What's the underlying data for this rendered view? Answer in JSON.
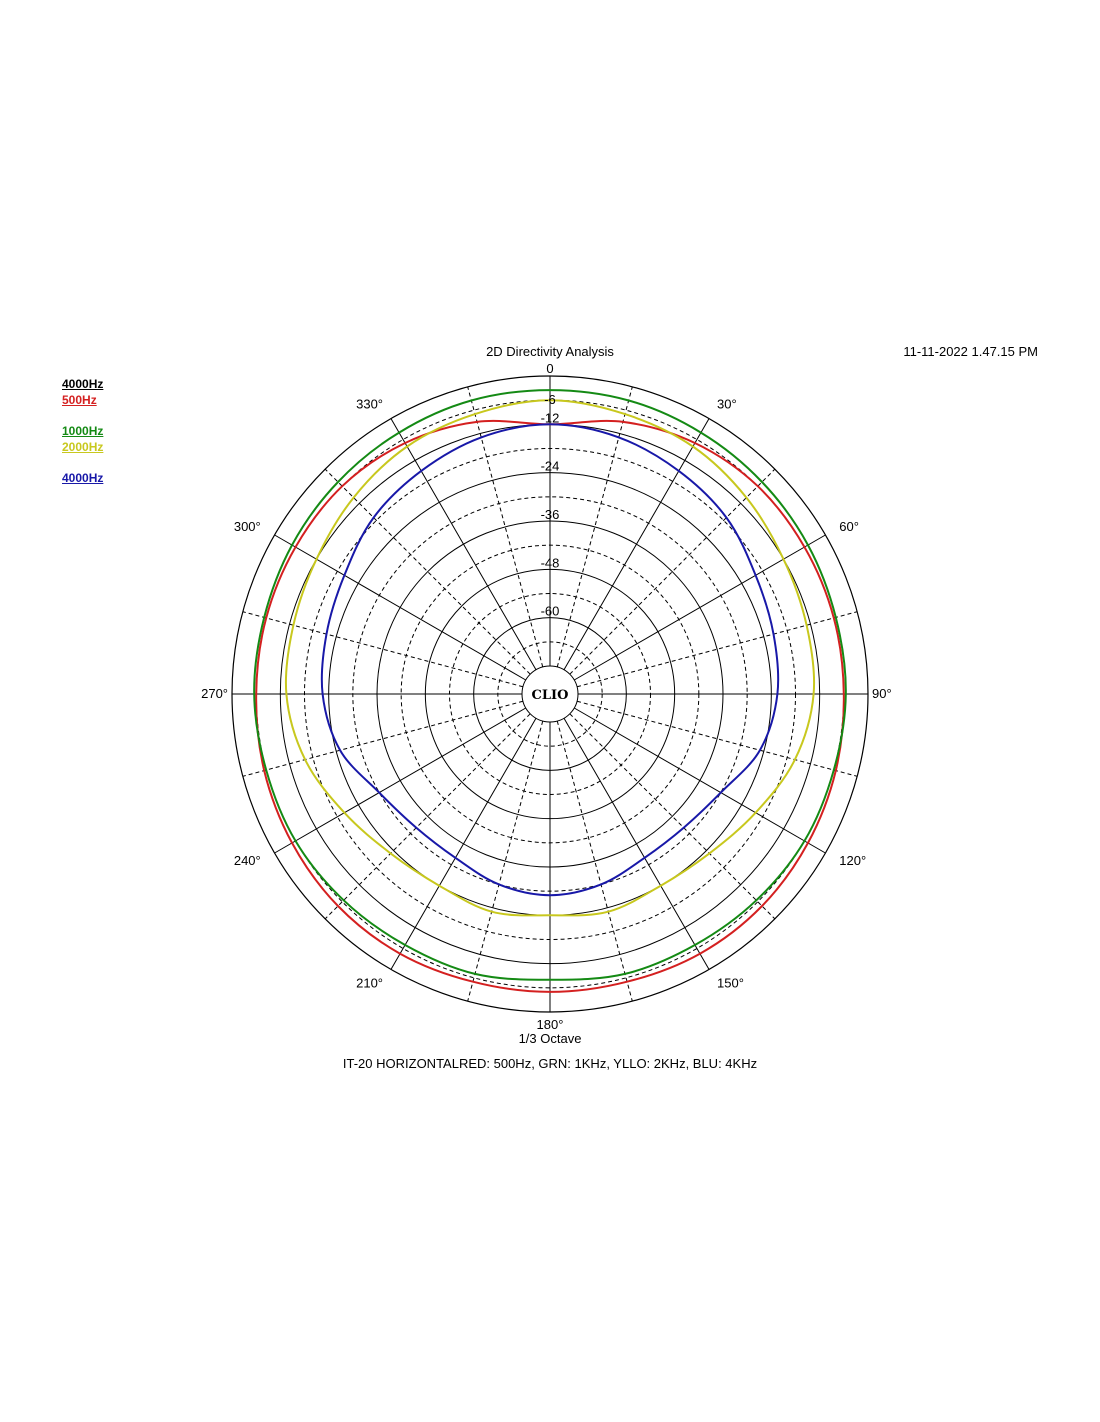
{
  "header": {
    "title": "2D Directivity Analysis",
    "timestamp": "11-11-2022 1.47.15 PM"
  },
  "legend": [
    {
      "label": "4000Hz",
      "color": "#000000"
    },
    {
      "label": "500Hz",
      "color": "#d42020"
    },
    {
      "label": "1000Hz",
      "color": "#148a14"
    },
    {
      "label": "2000Hz",
      "color": "#c8c81e"
    },
    {
      "label": "4000Hz",
      "color": "#1818a8"
    }
  ],
  "footer": {
    "subtitle": "1/3 Octave",
    "caption": "IT-20 HORIZONTALRED: 500Hz, GRN: 1KHz, YLLO: 2KHz, BLU: 4KHz"
  },
  "center_logo": "CLIO",
  "chart_data": {
    "type": "polar",
    "title": "2D Directivity Analysis",
    "angle_unit": "deg",
    "angle_ticks": [
      0,
      30,
      60,
      90,
      120,
      150,
      180,
      210,
      240,
      270,
      300,
      330
    ],
    "angle_tick_labels": [
      "0",
      "30°",
      "60°",
      "90°",
      "120°",
      "150°",
      "180°",
      "210°",
      "240°",
      "270°",
      "300°",
      "330°"
    ],
    "radial_unit": "dB",
    "radial_range": [
      -72,
      0
    ],
    "radial_ticks": [
      -60,
      -48,
      -36,
      -24,
      -12
    ],
    "radial_tick_labels": [
      "-60",
      "-48",
      "-36",
      "-24",
      "-12"
    ],
    "extra_radial_label": "-6",
    "grid": true,
    "legend_position": "top-left",
    "series": [
      {
        "name": "500Hz",
        "color": "#d42020",
        "angles": [
          0,
          15,
          30,
          45,
          60,
          75,
          90,
          105,
          120,
          135,
          150,
          165,
          180,
          195,
          210,
          225,
          240,
          255,
          270,
          285,
          300,
          315,
          330,
          345
        ],
        "values": [
          -12,
          -9,
          -7,
          -6,
          -6,
          -6,
          -6,
          -5.5,
          -5,
          -4.5,
          -4.5,
          -5,
          -5,
          -5,
          -4.5,
          -4.5,
          -5,
          -5.5,
          -6,
          -6,
          -6,
          -6,
          -7,
          -9
        ]
      },
      {
        "name": "1000Hz",
        "color": "#148a14",
        "angles": [
          0,
          15,
          30,
          45,
          60,
          75,
          90,
          105,
          120,
          135,
          150,
          165,
          180,
          195,
          210,
          225,
          240,
          255,
          270,
          285,
          300,
          315,
          330,
          345
        ],
        "values": [
          -3.5,
          -3.5,
          -4,
          -4.5,
          -5,
          -5.5,
          -5.5,
          -6,
          -6,
          -6.5,
          -7,
          -7,
          -8,
          -7,
          -7,
          -6.5,
          -6,
          -6,
          -5.5,
          -5.5,
          -5,
          -4.5,
          -4,
          -3.5
        ]
      },
      {
        "name": "2000Hz",
        "color": "#c8c81e",
        "angles": [
          0,
          15,
          30,
          45,
          60,
          75,
          90,
          105,
          120,
          135,
          150,
          165,
          180,
          195,
          210,
          225,
          240,
          255,
          270,
          285,
          300,
          315,
          330,
          345
        ],
        "values": [
          -6,
          -7,
          -8,
          -10,
          -12,
          -13,
          -13.5,
          -16,
          -20,
          -23,
          -24,
          -23,
          -24,
          -23,
          -24,
          -23,
          -20,
          -16,
          -13.5,
          -13,
          -12,
          -10,
          -8,
          -7
        ]
      },
      {
        "name": "4000Hz",
        "color": "#1818a8",
        "angles": [
          0,
          15,
          30,
          45,
          60,
          75,
          90,
          105,
          120,
          135,
          150,
          165,
          180,
          195,
          210,
          225,
          240,
          255,
          270,
          285,
          300,
          315,
          330,
          345
        ],
        "values": [
          -12,
          -13,
          -15,
          -17,
          -20,
          -21.5,
          -22.5,
          -25,
          -30,
          -32,
          -32,
          -30,
          -29,
          -30,
          -32,
          -32,
          -30,
          -25,
          -22.5,
          -21.5,
          -20,
          -17,
          -15,
          -13
        ]
      }
    ]
  }
}
